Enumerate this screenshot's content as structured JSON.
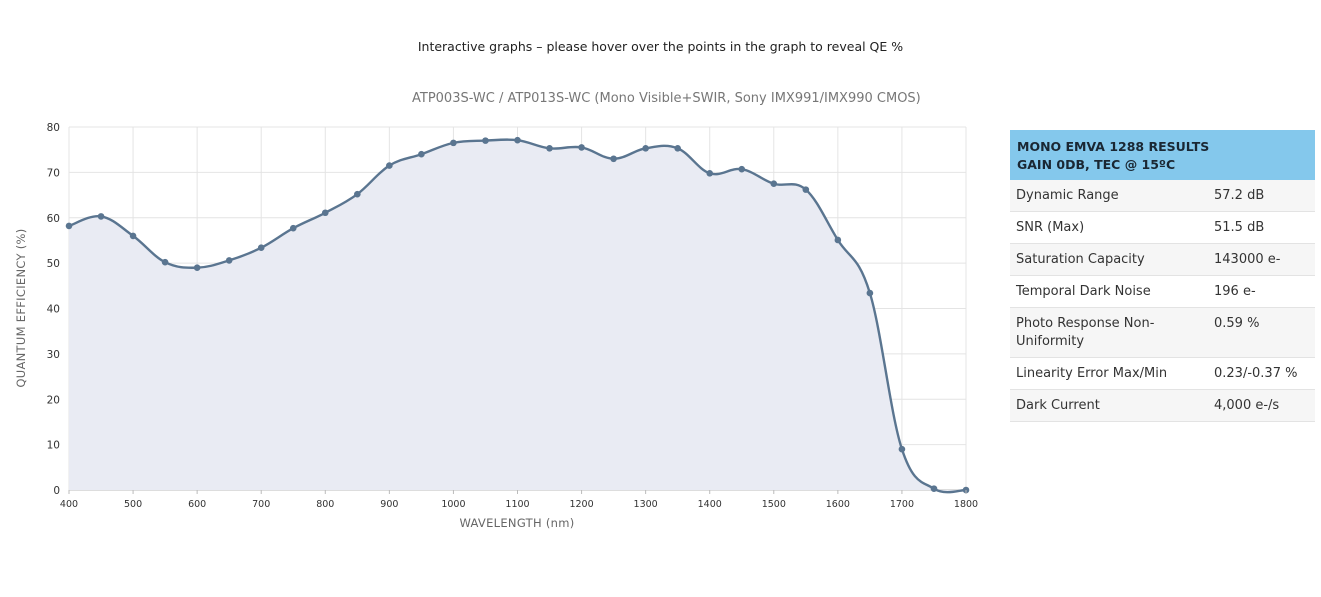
{
  "page": {
    "instruction": "Interactive graphs – please hover over the points in the graph to reveal QE %"
  },
  "chart_data": {
    "type": "line",
    "title": "ATP003S-WC / ATP013S-WC (Mono Visible+SWIR, Sony IMX991/IMX990 CMOS)",
    "xlabel": "WAVELENGTH (nm)",
    "ylabel": "QUANTUM EFFICIENCY (%)",
    "xlim": [
      400,
      1800
    ],
    "ylim": [
      0,
      80
    ],
    "x_ticks": [
      400,
      500,
      600,
      700,
      800,
      900,
      1000,
      1100,
      1200,
      1300,
      1400,
      1500,
      1600,
      1700,
      1800
    ],
    "y_ticks": [
      0,
      10,
      20,
      30,
      40,
      50,
      60,
      70,
      80
    ],
    "grid": true,
    "fill": true,
    "colors": {
      "line": "#5a7590",
      "fill": "#e9ebf3",
      "grid": "#e4e4e4"
    },
    "x": [
      400,
      450,
      500,
      550,
      600,
      650,
      700,
      750,
      800,
      850,
      900,
      950,
      1000,
      1050,
      1100,
      1150,
      1200,
      1250,
      1300,
      1350,
      1400,
      1450,
      1500,
      1550,
      1600,
      1650,
      1700,
      1750,
      1800
    ],
    "y": [
      58.2,
      60.3,
      56.0,
      50.2,
      49.0,
      50.6,
      53.4,
      57.7,
      61.1,
      65.2,
      71.5,
      74.0,
      76.5,
      77.0,
      77.1,
      75.3,
      75.5,
      73.0,
      75.3,
      75.3,
      69.8,
      70.7,
      67.5,
      66.2,
      55.1,
      43.4,
      9.0,
      0.3,
      0.0
    ]
  },
  "results": {
    "header_line1": "MONO EMVA 1288 RESULTS",
    "header_line2": "GAIN 0DB, TEC @ 15ºC",
    "rows": [
      {
        "label": "Dynamic Range",
        "value": "57.2 dB"
      },
      {
        "label": "SNR (Max)",
        "value": "51.5 dB"
      },
      {
        "label": "Saturation Capacity",
        "value": "143000 e-"
      },
      {
        "label": "Temporal Dark Noise",
        "value": "196 e-"
      },
      {
        "label": "Photo Response Non-Uniformity",
        "value": "0.59 %"
      },
      {
        "label": "Linearity Error Max/Min",
        "value": "0.23/-0.37 %"
      },
      {
        "label": "Dark Current",
        "value": "4,000 e-/s"
      }
    ]
  }
}
